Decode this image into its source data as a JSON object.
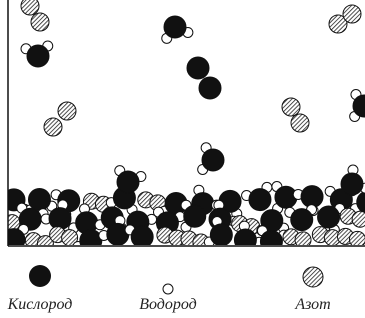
{
  "legend": [
    {
      "label": "Кислород"
    },
    {
      "label": "Водород"
    },
    {
      "label": "Азот"
    }
  ]
}
